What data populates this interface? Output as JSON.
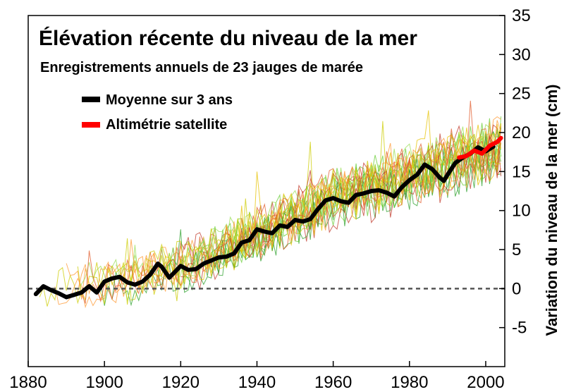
{
  "chart_data": {
    "type": "line",
    "title": "Élévation récente du niveau de la mer",
    "subtitle": "Enregistrements annuels de 23 jauges de marée",
    "xlabel": "",
    "ylabel": "Variation du niveau de la mer (cm)",
    "xlim": [
      1880,
      2005
    ],
    "ylim": [
      -10,
      35
    ],
    "x_ticks": [
      1880,
      1900,
      1920,
      1940,
      1960,
      1980,
      2000
    ],
    "y_ticks": [
      -5,
      0,
      5,
      10,
      15,
      20,
      25,
      30,
      35
    ],
    "grid": false,
    "legend": "top-left",
    "zero_line": {
      "y": 0,
      "style": "dashed",
      "color": "#555555"
    },
    "series": [
      {
        "name": "Moyenne sur 3 ans",
        "color": "#000000",
        "x": [
          1882,
          1884,
          1886,
          1888,
          1890,
          1892,
          1894,
          1896,
          1898,
          1900,
          1902,
          1904,
          1906,
          1908,
          1910,
          1912,
          1914,
          1915,
          1917,
          1918,
          1920,
          1922,
          1924,
          1926,
          1928,
          1930,
          1932,
          1934,
          1936,
          1938,
          1940,
          1942,
          1944,
          1946,
          1948,
          1950,
          1952,
          1954,
          1956,
          1958,
          1960,
          1962,
          1964,
          1966,
          1968,
          1970,
          1972,
          1974,
          1976,
          1978,
          1980,
          1982,
          1984,
          1986,
          1988,
          1989,
          1990,
          1992,
          1994,
          1996,
          1998,
          2000,
          2002
        ],
        "values": [
          -0.7,
          0.3,
          -0.2,
          -0.6,
          -1.1,
          -0.8,
          -0.5,
          0.3,
          -0.5,
          0.9,
          1.3,
          1.5,
          0.8,
          0.5,
          0.9,
          1.8,
          3.2,
          2.8,
          1.4,
          1.9,
          2.9,
          2.4,
          2.5,
          3.2,
          3.6,
          4.0,
          4.1,
          4.5,
          5.9,
          6.2,
          7.6,
          7.3,
          7.1,
          8.1,
          7.9,
          8.8,
          8.6,
          8.9,
          10.2,
          11.3,
          11.6,
          11.2,
          11.0,
          12.0,
          12.2,
          12.5,
          12.6,
          12.3,
          11.8,
          13.0,
          13.9,
          14.6,
          15.9,
          15.3,
          14.2,
          13.8,
          14.6,
          16.1,
          16.8,
          17.3,
          18.1,
          17.6,
          18.2
        ]
      },
      {
        "name": "Altimétrie satellite",
        "color": "#ff0000",
        "x": [
          1993,
          1995,
          1997,
          1999,
          2001,
          2003,
          2004
        ],
        "values": [
          16.8,
          17.0,
          17.7,
          17.3,
          18.3,
          18.8,
          19.3
        ]
      }
    ],
    "tide_gauges": {
      "count": 23,
      "colors": [
        "#2ca02c",
        "#66cc33",
        "#99dd55",
        "#cccc00",
        "#e6c200",
        "#ff9933",
        "#e05a2a",
        "#c0392b"
      ],
      "envelope_x": [
        1880,
        1900,
        1920,
        1940,
        1960,
        1980,
        2004
      ],
      "envelope_mean": [
        0.0,
        0.3,
        2.5,
        6.5,
        11.2,
        14.0,
        18.0
      ],
      "envelope_spread": [
        3.0,
        3.2,
        3.2,
        3.5,
        3.8,
        4.2,
        4.5
      ]
    }
  }
}
